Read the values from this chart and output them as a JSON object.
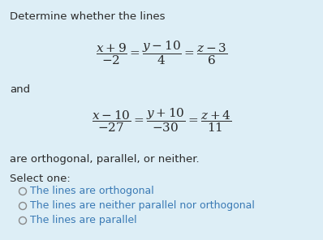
{
  "bg_color": "#ddeef6",
  "text_color": "#3a7ab5",
  "dark_text": "#2a2a2a",
  "title": "Determine whether the lines",
  "and_text": "and",
  "conclusion": "are orthogonal, parallel, or neither.",
  "select_one": "Select one:",
  "options": [
    "The lines are orthogonal",
    "The lines are neither parallel nor orthogonal",
    "The lines are parallel"
  ],
  "eq1_math": "$\\dfrac{x+9}{-2} = \\dfrac{y-10}{4} = \\dfrac{z-3}{6}$",
  "eq2_math": "$\\dfrac{x-10}{-27} = \\dfrac{y+10}{-30} = \\dfrac{z+4}{11}$",
  "font_size_main": 9.5,
  "font_size_eq": 11,
  "font_size_options": 9.0,
  "circle_color": "#888888",
  "figw": 3.98,
  "figh": 2.96,
  "dpi": 100
}
